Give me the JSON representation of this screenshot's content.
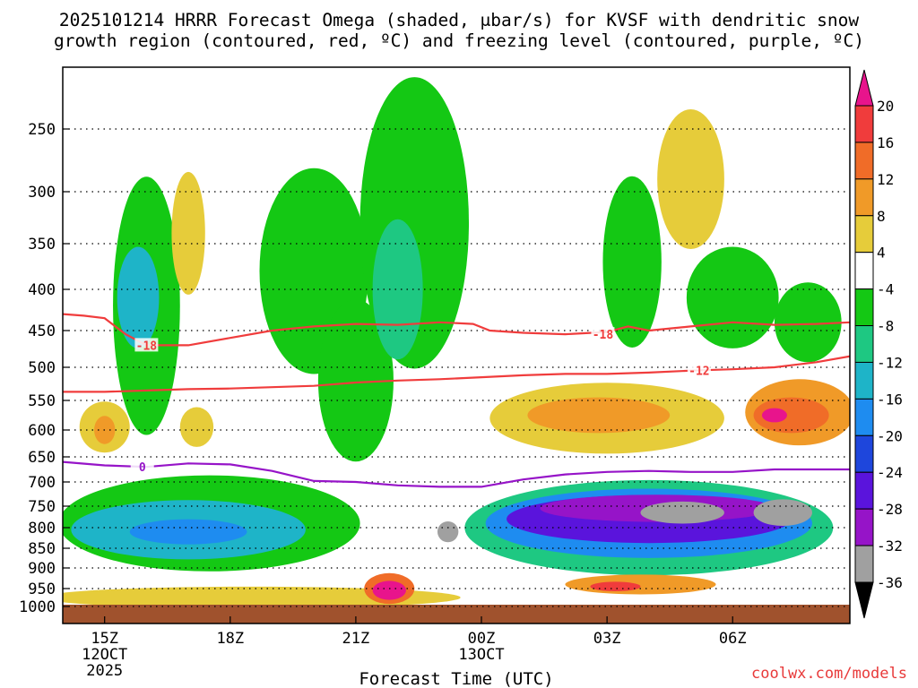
{
  "chart_data": {
    "type": "heatmap",
    "title_line1": "2025101214 HRRR Forecast Omega (shaded, μbar/s) for KVSF with dendritic snow",
    "title_line2": "growth region (contoured, red, ºC) and freezing level (contoured, purple, ºC)",
    "xlabel": "Forecast Time (UTC)",
    "credit": "coolwx.com/models",
    "xlim": [
      14.0,
      32.8
    ],
    "x_ticks": [
      {
        "x": 15,
        "label": "15Z",
        "sub1": "12OCT",
        "sub2": "2025"
      },
      {
        "x": 18,
        "label": "18Z",
        "sub1": "",
        "sub2": ""
      },
      {
        "x": 21,
        "label": "21Z",
        "sub1": "",
        "sub2": ""
      },
      {
        "x": 24,
        "label": "00Z",
        "sub1": "13OCT",
        "sub2": ""
      },
      {
        "x": 27,
        "label": "03Z",
        "sub1": "",
        "sub2": ""
      },
      {
        "x": 30,
        "label": "06Z",
        "sub1": "",
        "sub2": ""
      }
    ],
    "y_ticks": [
      250,
      300,
      350,
      400,
      450,
      500,
      550,
      600,
      650,
      700,
      750,
      800,
      850,
      900,
      950,
      1000
    ],
    "colorbar": {
      "ticks": [
        20,
        16,
        12,
        8,
        4,
        -4,
        -8,
        -12,
        -16,
        -20,
        -24,
        -28,
        -32,
        -36
      ],
      "bins": [
        {
          "lo": 20,
          "hi": 24,
          "color": "#e8148c"
        },
        {
          "lo": 16,
          "hi": 20,
          "color": "#f03c3c"
        },
        {
          "lo": 12,
          "hi": 16,
          "color": "#f06c28"
        },
        {
          "lo": 8,
          "hi": 12,
          "color": "#f09a28"
        },
        {
          "lo": 4,
          "hi": 8,
          "color": "#e6cc3a"
        },
        {
          "lo": -4,
          "hi": 4,
          "color": "#ffffff"
        },
        {
          "lo": -8,
          "hi": -4,
          "color": "#14c814"
        },
        {
          "lo": -12,
          "hi": -8,
          "color": "#1ec882"
        },
        {
          "lo": -16,
          "hi": -12,
          "color": "#1eb4c8"
        },
        {
          "lo": -20,
          "hi": -16,
          "color": "#1e8cf0"
        },
        {
          "lo": -24,
          "hi": -20,
          "color": "#1e46dc"
        },
        {
          "lo": -28,
          "hi": -24,
          "color": "#5a14dc"
        },
        {
          "lo": -32,
          "hi": -28,
          "color": "#9614c8"
        },
        {
          "lo": -36,
          "hi": -32,
          "color": "#a0a0a0"
        },
        {
          "lo": -40,
          "hi": -36,
          "color": "#000000"
        }
      ]
    },
    "omega_features": [
      {
        "x": 16.0,
        "p": 420,
        "rx": 0.8,
        "rp": 150,
        "value": -8
      },
      {
        "x": 15.8,
        "p": 410,
        "rx": 0.5,
        "rp": 60,
        "value": -16
      },
      {
        "x": 20.0,
        "p": 380,
        "rx": 1.3,
        "rp": 110,
        "value": -8
      },
      {
        "x": 21.0,
        "p": 520,
        "rx": 0.9,
        "rp": 120,
        "value": -8
      },
      {
        "x": 22.4,
        "p": 330,
        "rx": 1.3,
        "rp": 140,
        "value": -8
      },
      {
        "x": 22.0,
        "p": 400,
        "rx": 0.6,
        "rp": 80,
        "value": -12
      },
      {
        "x": 27.6,
        "p": 370,
        "rx": 0.7,
        "rp": 90,
        "value": -8
      },
      {
        "x": 30.0,
        "p": 410,
        "rx": 1.1,
        "rp": 60,
        "value": -8
      },
      {
        "x": 31.8,
        "p": 440,
        "rx": 0.8,
        "rp": 50,
        "value": -8
      },
      {
        "x": 17.0,
        "p": 340,
        "rx": 0.4,
        "rp": 60,
        "value": 4
      },
      {
        "x": 29.0,
        "p": 290,
        "rx": 0.8,
        "rp": 60,
        "value": 4
      },
      {
        "x": 15.0,
        "p": 595,
        "rx": 0.6,
        "rp": 45,
        "value": 4
      },
      {
        "x": 15.0,
        "p": 600,
        "rx": 0.25,
        "rp": 25,
        "value": 8
      },
      {
        "x": 17.2,
        "p": 595,
        "rx": 0.4,
        "rp": 35,
        "value": 4
      },
      {
        "x": 27.0,
        "p": 580,
        "rx": 2.8,
        "rp": 60,
        "value": 4
      },
      {
        "x": 26.8,
        "p": 575,
        "rx": 1.7,
        "rp": 30,
        "value": 8
      },
      {
        "x": 31.6,
        "p": 570,
        "rx": 1.3,
        "rp": 55,
        "value": 8
      },
      {
        "x": 31.4,
        "p": 575,
        "rx": 0.9,
        "rp": 30,
        "value": 12
      },
      {
        "x": 31.0,
        "p": 575,
        "rx": 0.3,
        "rp": 12,
        "value": 20
      },
      {
        "x": 17.5,
        "p": 790,
        "rx": 3.6,
        "rp": 110,
        "value": -8
      },
      {
        "x": 17.0,
        "p": 805,
        "rx": 2.8,
        "rp": 70,
        "value": -16
      },
      {
        "x": 17.0,
        "p": 810,
        "rx": 1.4,
        "rp": 30,
        "value": -20
      },
      {
        "x": 28.0,
        "p": 800,
        "rx": 4.4,
        "rp": 110,
        "value": -12
      },
      {
        "x": 28.0,
        "p": 790,
        "rx": 3.9,
        "rp": 80,
        "value": -20
      },
      {
        "x": 28.0,
        "p": 780,
        "rx": 3.4,
        "rp": 55,
        "value": -28
      },
      {
        "x": 28.2,
        "p": 755,
        "rx": 2.8,
        "rp": 30,
        "value": -32
      },
      {
        "x": 28.8,
        "p": 765,
        "rx": 1.0,
        "rp": 25,
        "value": -36
      },
      {
        "x": 31.2,
        "p": 765,
        "rx": 0.7,
        "rp": 30,
        "value": -36
      },
      {
        "x": 23.2,
        "p": 810,
        "rx": 0.25,
        "rp": 25,
        "value": -36
      },
      {
        "x": 18.5,
        "p": 975,
        "rx": 5.0,
        "rp": 30,
        "value": 4
      },
      {
        "x": 21.8,
        "p": 950,
        "rx": 0.6,
        "rp": 40,
        "value": 12
      },
      {
        "x": 21.8,
        "p": 955,
        "rx": 0.4,
        "rp": 25,
        "value": 20
      },
      {
        "x": 27.8,
        "p": 940,
        "rx": 1.8,
        "rp": 25,
        "value": 8
      },
      {
        "x": 27.2,
        "p": 945,
        "rx": 0.6,
        "rp": 12,
        "value": 16
      }
    ],
    "contours": [
      {
        "name": "dgz-18C",
        "color": "#f03c3c",
        "label": "-18",
        "label_pos": [
          [
            16.0,
            470
          ],
          [
            26.9,
            455
          ]
        ],
        "points": [
          [
            14.0,
            430
          ],
          [
            14.5,
            432
          ],
          [
            15.0,
            435
          ],
          [
            15.5,
            455
          ],
          [
            16.0,
            470
          ],
          [
            17.0,
            470
          ],
          [
            18.0,
            460
          ],
          [
            19.0,
            450
          ],
          [
            20.0,
            445
          ],
          [
            21.0,
            442
          ],
          [
            22.0,
            443
          ],
          [
            23.0,
            440
          ],
          [
            23.8,
            442
          ],
          [
            24.2,
            450
          ],
          [
            25.0,
            453
          ],
          [
            26.0,
            455
          ],
          [
            27.0,
            452
          ],
          [
            27.5,
            445
          ],
          [
            28.0,
            450
          ],
          [
            29.0,
            445
          ],
          [
            30.0,
            440
          ],
          [
            31.0,
            443
          ],
          [
            32.0,
            442
          ],
          [
            32.8,
            440
          ]
        ]
      },
      {
        "name": "dgz-12C",
        "color": "#f03c3c",
        "label": "-12",
        "label_pos": [
          [
            29.2,
            505
          ]
        ],
        "points": [
          [
            14.0,
            537
          ],
          [
            15.0,
            537
          ],
          [
            16.0,
            535
          ],
          [
            17.0,
            533
          ],
          [
            18.0,
            532
          ],
          [
            19.0,
            530
          ],
          [
            20.0,
            528
          ],
          [
            21.0,
            523
          ],
          [
            22.0,
            520
          ],
          [
            23.0,
            518
          ],
          [
            24.0,
            515
          ],
          [
            25.0,
            512
          ],
          [
            26.0,
            510
          ],
          [
            27.0,
            510
          ],
          [
            28.0,
            508
          ],
          [
            29.0,
            505
          ],
          [
            30.0,
            503
          ],
          [
            31.0,
            500
          ],
          [
            32.0,
            493
          ],
          [
            32.8,
            485
          ]
        ]
      },
      {
        "name": "freezing-level",
        "color": "#9614c8",
        "label": "0",
        "label_pos": [
          [
            15.9,
            670
          ]
        ],
        "points": [
          [
            14.0,
            660
          ],
          [
            15.0,
            667
          ],
          [
            16.0,
            670
          ],
          [
            17.0,
            663
          ],
          [
            18.0,
            665
          ],
          [
            19.0,
            678
          ],
          [
            20.0,
            698
          ],
          [
            21.0,
            700
          ],
          [
            22.0,
            707
          ],
          [
            23.0,
            710
          ],
          [
            24.0,
            710
          ],
          [
            25.0,
            695
          ],
          [
            26.0,
            685
          ],
          [
            27.0,
            680
          ],
          [
            28.0,
            678
          ],
          [
            29.0,
            680
          ],
          [
            30.0,
            680
          ],
          [
            31.0,
            675
          ],
          [
            32.0,
            675
          ],
          [
            32.8,
            675
          ]
        ]
      }
    ]
  }
}
